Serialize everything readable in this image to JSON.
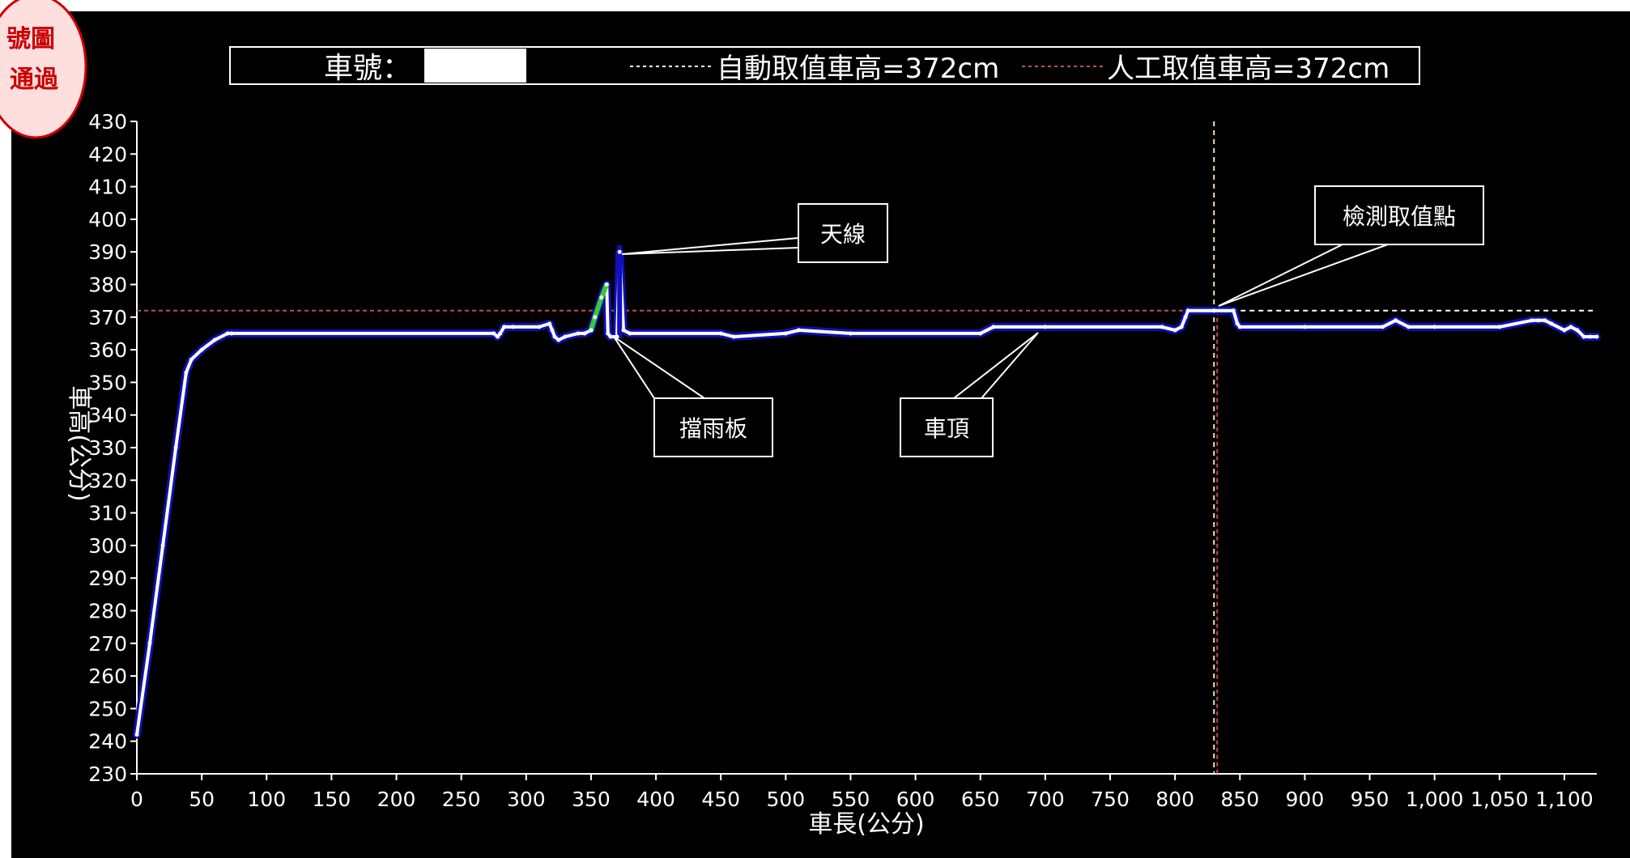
{
  "stamp": {
    "line1": "號圖",
    "line2": "通過",
    "border_color": "#cc0000",
    "fill_color": "#ffdede"
  },
  "legend": {
    "vehicle_label": "車號：",
    "auto_label": "自動取值車高=372cm",
    "manual_label": "人工取值車高=372cm"
  },
  "colors": {
    "background": "#000000",
    "profile": "#ffffff",
    "profile_outline": "#1010b0",
    "green": "#33cc33",
    "auto_line": "#ffffff",
    "manual_line": "#c0504d",
    "marker_line": "#f0e0b0"
  },
  "annotations": {
    "antenna": "天線",
    "detect_point": "檢測取值點",
    "rain_guard": "擋雨板",
    "roof": "車頂"
  },
  "chart_data": {
    "type": "line",
    "title": "",
    "xlabel": "車長(公分)",
    "ylabel": "車高(公分)",
    "xlim": [
      0,
      1125
    ],
    "ylim": [
      230,
      430
    ],
    "x_ticks": [
      "0",
      "50",
      "100",
      "150",
      "200",
      "250",
      "300",
      "350",
      "400",
      "450",
      "500",
      "550",
      "600",
      "650",
      "700",
      "750",
      "800",
      "850",
      "900",
      "950",
      "1,000",
      "1,050",
      "1,100"
    ],
    "y_ticks": [
      "230",
      "240",
      "250",
      "260",
      "270",
      "280",
      "290",
      "300",
      "310",
      "320",
      "330",
      "340",
      "350",
      "360",
      "370",
      "380",
      "390",
      "400",
      "410",
      "420",
      "430"
    ],
    "grid": false,
    "auto_height": 372,
    "manual_height": 372,
    "detect_x": 830,
    "series": [
      {
        "x": [
          0,
          10,
          20,
          30,
          38,
          42,
          50,
          60,
          70,
          73,
          275,
          278,
          280,
          283,
          290,
          310,
          318,
          320,
          322,
          325,
          330,
          340,
          345,
          350,
          353,
          358,
          362,
          363,
          365,
          370,
          372,
          375,
          380,
          450,
          460,
          500,
          510,
          550,
          650,
          660,
          700,
          790,
          800,
          805,
          808,
          810,
          830,
          845,
          848,
          850,
          900,
          960,
          970,
          980,
          1000,
          1050,
          1075,
          1080,
          1085,
          1090,
          1100,
          1105,
          1110,
          1115,
          1120,
          1125
        ],
        "values": [
          242,
          270,
          300,
          330,
          353,
          357,
          360,
          363,
          365,
          365,
          365,
          364,
          365,
          367,
          367,
          367,
          368,
          366,
          364,
          363,
          364,
          365,
          365,
          366,
          370,
          376,
          380,
          365,
          364,
          364,
          390,
          366,
          365,
          365,
          364,
          365,
          366,
          365,
          365,
          367,
          367,
          367,
          366,
          367,
          370,
          372,
          372,
          372,
          368,
          367,
          367,
          367,
          369,
          367,
          367,
          367,
          369,
          369,
          369,
          368,
          366,
          367,
          366,
          364,
          364,
          364
        ]
      }
    ]
  }
}
